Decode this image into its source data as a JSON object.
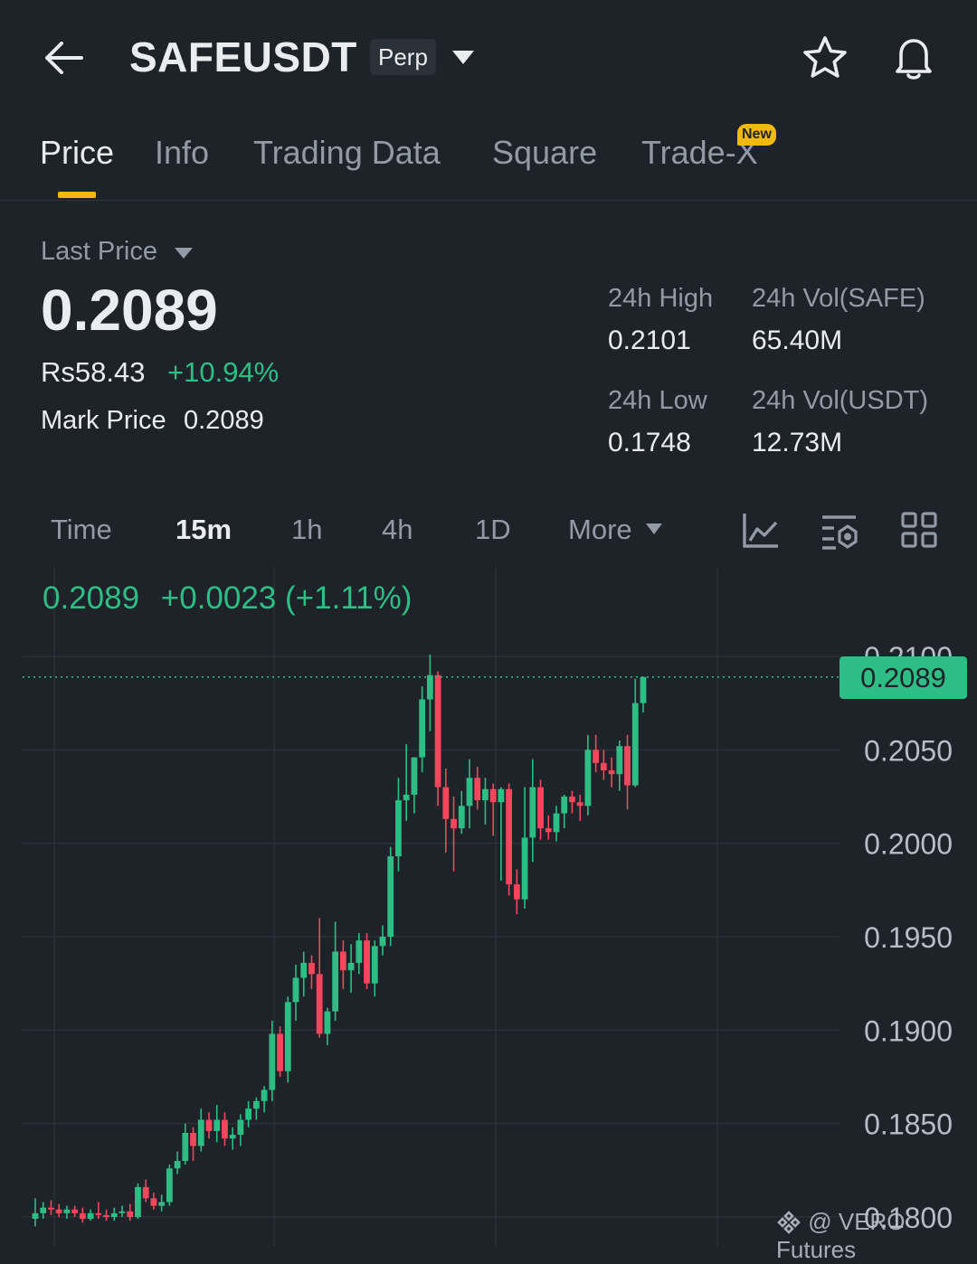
{
  "header": {
    "symbol": "SAFEUSDT",
    "contract_type": "Perp"
  },
  "tabs": [
    {
      "label": "Price",
      "active": true
    },
    {
      "label": "Info"
    },
    {
      "label": "Trading Data"
    },
    {
      "label": "Square"
    },
    {
      "label": "Trade-X",
      "badge": "New"
    }
  ],
  "ticker": {
    "last_price_label": "Last Price",
    "last_price": "0.2089",
    "fiat_price": "Rs58.43",
    "change_pct": "+10.94%",
    "mark_price_label": "Mark Price",
    "mark_price": "0.2089",
    "high_label": "24h High",
    "high": "0.2101",
    "low_label": "24h Low",
    "low": "0.1748",
    "vol_base_label": "24h Vol(SAFE)",
    "vol_base": "65.40M",
    "vol_quote_label": "24h Vol(USDT)",
    "vol_quote": "12.73M"
  },
  "intervals": {
    "items": [
      "Time",
      "15m",
      "1h",
      "4h",
      "1D"
    ],
    "active": "15m",
    "more_label": "More"
  },
  "colors": {
    "up": "#2ebd85",
    "down": "#f6465d",
    "accent": "#f0b90b",
    "background": "#1e2329"
  },
  "icons": [
    "back-arrow-icon",
    "dropdown-caret-icon",
    "star-icon",
    "bell-icon",
    "line-chart-icon",
    "indicator-settings-icon",
    "grid-icon"
  ],
  "chart_data": {
    "type": "candlestick",
    "interval": "15m",
    "summary": {
      "price": "0.2089",
      "change": "+0.0023",
      "change_pct": "(+1.11%)"
    },
    "y_ticks": [
      "0.2100",
      "0.2050",
      "0.2000",
      "0.1950",
      "0.1900",
      "0.1850",
      "0.1800"
    ],
    "ylim": [
      0.1795,
      0.211
    ],
    "current_price_value": 0.2089,
    "current_price_label": "0.2089",
    "candles": [
      {
        "o": 0.1799,
        "h": 0.181,
        "l": 0.1795,
        "c": 0.1802
      },
      {
        "o": 0.1802,
        "h": 0.1808,
        "l": 0.1799,
        "c": 0.1805
      },
      {
        "o": 0.1805,
        "h": 0.1809,
        "l": 0.1801,
        "c": 0.1804
      },
      {
        "o": 0.1804,
        "h": 0.1807,
        "l": 0.18,
        "c": 0.1802
      },
      {
        "o": 0.1802,
        "h": 0.1806,
        "l": 0.1799,
        "c": 0.1804
      },
      {
        "o": 0.1804,
        "h": 0.1806,
        "l": 0.18,
        "c": 0.1802
      },
      {
        "o": 0.1802,
        "h": 0.1805,
        "l": 0.1797,
        "c": 0.1799
      },
      {
        "o": 0.1799,
        "h": 0.1804,
        "l": 0.1798,
        "c": 0.1802
      },
      {
        "o": 0.1802,
        "h": 0.1808,
        "l": 0.1799,
        "c": 0.1801
      },
      {
        "o": 0.1801,
        "h": 0.1804,
        "l": 0.1798,
        "c": 0.18
      },
      {
        "o": 0.18,
        "h": 0.1805,
        "l": 0.1798,
        "c": 0.1802
      },
      {
        "o": 0.1802,
        "h": 0.1806,
        "l": 0.18,
        "c": 0.1803
      },
      {
        "o": 0.1803,
        "h": 0.1807,
        "l": 0.1798,
        "c": 0.18
      },
      {
        "o": 0.18,
        "h": 0.1818,
        "l": 0.1799,
        "c": 0.1816
      },
      {
        "o": 0.1816,
        "h": 0.182,
        "l": 0.1808,
        "c": 0.181
      },
      {
        "o": 0.181,
        "h": 0.1813,
        "l": 0.1804,
        "c": 0.1806
      },
      {
        "o": 0.1806,
        "h": 0.1812,
        "l": 0.1803,
        "c": 0.1808
      },
      {
        "o": 0.1808,
        "h": 0.1828,
        "l": 0.1806,
        "c": 0.1826
      },
      {
        "o": 0.1826,
        "h": 0.1835,
        "l": 0.1823,
        "c": 0.183
      },
      {
        "o": 0.183,
        "h": 0.185,
        "l": 0.1828,
        "c": 0.1845
      },
      {
        "o": 0.1845,
        "h": 0.1848,
        "l": 0.183,
        "c": 0.1838
      },
      {
        "o": 0.1838,
        "h": 0.1858,
        "l": 0.1835,
        "c": 0.1852
      },
      {
        "o": 0.1852,
        "h": 0.1856,
        "l": 0.1842,
        "c": 0.1846
      },
      {
        "o": 0.1846,
        "h": 0.186,
        "l": 0.184,
        "c": 0.1852
      },
      {
        "o": 0.1852,
        "h": 0.1856,
        "l": 0.1838,
        "c": 0.1842
      },
      {
        "o": 0.1842,
        "h": 0.1848,
        "l": 0.1836,
        "c": 0.1844
      },
      {
        "o": 0.1844,
        "h": 0.1855,
        "l": 0.1838,
        "c": 0.1852
      },
      {
        "o": 0.1852,
        "h": 0.1862,
        "l": 0.1848,
        "c": 0.1858
      },
      {
        "o": 0.1858,
        "h": 0.1864,
        "l": 0.1852,
        "c": 0.1862
      },
      {
        "o": 0.1862,
        "h": 0.187,
        "l": 0.1856,
        "c": 0.1868
      },
      {
        "o": 0.1868,
        "h": 0.1905,
        "l": 0.1862,
        "c": 0.1898
      },
      {
        "o": 0.1898,
        "h": 0.1902,
        "l": 0.1875,
        "c": 0.1878
      },
      {
        "o": 0.1878,
        "h": 0.1918,
        "l": 0.1872,
        "c": 0.1915
      },
      {
        "o": 0.1915,
        "h": 0.1935,
        "l": 0.1905,
        "c": 0.1928
      },
      {
        "o": 0.1928,
        "h": 0.1942,
        "l": 0.1918,
        "c": 0.1936
      },
      {
        "o": 0.1936,
        "h": 0.194,
        "l": 0.1922,
        "c": 0.193
      },
      {
        "o": 0.193,
        "h": 0.196,
        "l": 0.1896,
        "c": 0.1898
      },
      {
        "o": 0.1898,
        "h": 0.1912,
        "l": 0.1892,
        "c": 0.191
      },
      {
        "o": 0.191,
        "h": 0.1958,
        "l": 0.1905,
        "c": 0.1942
      },
      {
        "o": 0.1942,
        "h": 0.1948,
        "l": 0.1922,
        "c": 0.1932
      },
      {
        "o": 0.1932,
        "h": 0.1946,
        "l": 0.192,
        "c": 0.1936
      },
      {
        "o": 0.1936,
        "h": 0.1952,
        "l": 0.193,
        "c": 0.1948
      },
      {
        "o": 0.1948,
        "h": 0.1952,
        "l": 0.1922,
        "c": 0.1925
      },
      {
        "o": 0.1925,
        "h": 0.1948,
        "l": 0.1918,
        "c": 0.1945
      },
      {
        "o": 0.1945,
        "h": 0.1956,
        "l": 0.194,
        "c": 0.195
      },
      {
        "o": 0.195,
        "h": 0.1998,
        "l": 0.1945,
        "c": 0.1993
      },
      {
        "o": 0.1993,
        "h": 0.2035,
        "l": 0.1985,
        "c": 0.2023
      },
      {
        "o": 0.2023,
        "h": 0.2053,
        "l": 0.2012,
        "c": 0.2026
      },
      {
        "o": 0.2026,
        "h": 0.2045,
        "l": 0.2016,
        "c": 0.2046
      },
      {
        "o": 0.2046,
        "h": 0.2084,
        "l": 0.2038,
        "c": 0.2077
      },
      {
        "o": 0.2077,
        "h": 0.2101,
        "l": 0.206,
        "c": 0.209
      },
      {
        "o": 0.209,
        "h": 0.2092,
        "l": 0.202,
        "c": 0.203
      },
      {
        "o": 0.203,
        "h": 0.204,
        "l": 0.1995,
        "c": 0.2013
      },
      {
        "o": 0.2013,
        "h": 0.2025,
        "l": 0.1985,
        "c": 0.2008
      },
      {
        "o": 0.2008,
        "h": 0.2028,
        "l": 0.2005,
        "c": 0.202
      },
      {
        "o": 0.202,
        "h": 0.2045,
        "l": 0.2008,
        "c": 0.2035
      },
      {
        "o": 0.2035,
        "h": 0.2041,
        "l": 0.2018,
        "c": 0.2023
      },
      {
        "o": 0.2023,
        "h": 0.2035,
        "l": 0.201,
        "c": 0.2029
      },
      {
        "o": 0.2029,
        "h": 0.2032,
        "l": 0.2004,
        "c": 0.2022
      },
      {
        "o": 0.2022,
        "h": 0.203,
        "l": 0.198,
        "c": 0.2029
      },
      {
        "o": 0.2029,
        "h": 0.2032,
        "l": 0.1972,
        "c": 0.1978
      },
      {
        "o": 0.1978,
        "h": 0.1986,
        "l": 0.1962,
        "c": 0.197
      },
      {
        "o": 0.197,
        "h": 0.203,
        "l": 0.1965,
        "c": 0.2003
      },
      {
        "o": 0.2003,
        "h": 0.2045,
        "l": 0.199,
        "c": 0.203
      },
      {
        "o": 0.203,
        "h": 0.2034,
        "l": 0.2002,
        "c": 0.2008
      },
      {
        "o": 0.2008,
        "h": 0.2015,
        "l": 0.2002,
        "c": 0.2006
      },
      {
        "o": 0.2006,
        "h": 0.202,
        "l": 0.2001,
        "c": 0.2016
      },
      {
        "o": 0.2016,
        "h": 0.2026,
        "l": 0.2008,
        "c": 0.2025
      },
      {
        "o": 0.2025,
        "h": 0.2028,
        "l": 0.2016,
        "c": 0.2022
      },
      {
        "o": 0.2022,
        "h": 0.2026,
        "l": 0.2012,
        "c": 0.202
      },
      {
        "o": 0.202,
        "h": 0.2058,
        "l": 0.2015,
        "c": 0.205
      },
      {
        "o": 0.205,
        "h": 0.2058,
        "l": 0.2038,
        "c": 0.2043
      },
      {
        "o": 0.2043,
        "h": 0.205,
        "l": 0.2034,
        "c": 0.2039
      },
      {
        "o": 0.2039,
        "h": 0.2046,
        "l": 0.203,
        "c": 0.2037
      },
      {
        "o": 0.2037,
        "h": 0.2055,
        "l": 0.2028,
        "c": 0.2052
      },
      {
        "o": 0.2052,
        "h": 0.2058,
        "l": 0.2018,
        "c": 0.2031
      },
      {
        "o": 0.2031,
        "h": 0.2088,
        "l": 0.203,
        "c": 0.2075
      },
      {
        "o": 0.2075,
        "h": 0.2089,
        "l": 0.207,
        "c": 0.2089
      }
    ]
  },
  "watermark": "@ VERO Futures"
}
